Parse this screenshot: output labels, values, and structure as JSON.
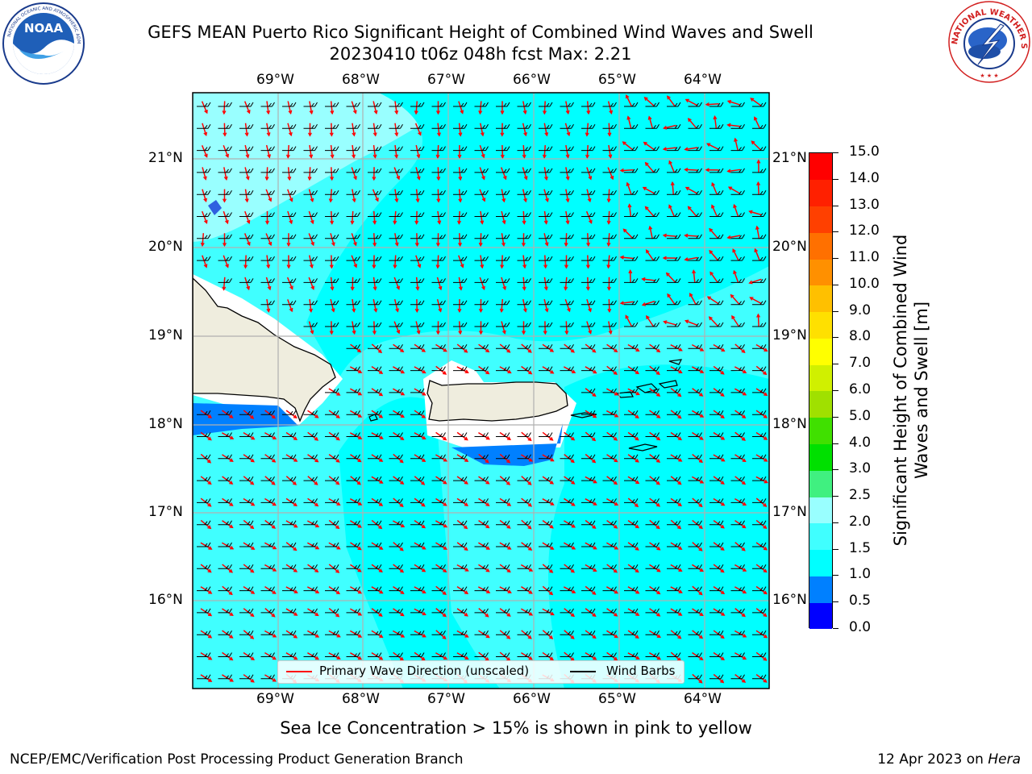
{
  "title_line1": "GEFS MEAN Puerto Rico Significant Height of Combined Wind Waves and Swell",
  "title_line2": "20230410 t06z 048h fcst   Max: 2.21",
  "logos": {
    "left": "NOAA",
    "right": "NATIONAL WEATHER SERVICE"
  },
  "lon_labels": [
    "69°W",
    "68°W",
    "67°W",
    "66°W",
    "65°W",
    "64°W"
  ],
  "lat_labels": [
    "21°N",
    "20°N",
    "19°N",
    "18°N",
    "17°N",
    "16°N"
  ],
  "legend": {
    "wave_label": "Primary Wave Direction (unscaled)",
    "barb_label": "Wind Barbs"
  },
  "colorbar": {
    "label": "Significant Height of Combined Wind Waves and Swell [m]",
    "ticks": [
      "0.0",
      "0.5",
      "1.0",
      "1.5",
      "2.0",
      "2.5",
      "3.0",
      "4.0",
      "5.0",
      "6.0",
      "7.0",
      "8.0",
      "9.0",
      "10.0",
      "11.0",
      "12.0",
      "13.0",
      "14.0",
      "15.0"
    ],
    "colors": [
      "#0000ff",
      "#0080ff",
      "#00ffff",
      "#40ffff",
      "#99ffff",
      "#40f080",
      "#00e000",
      "#40e000",
      "#a0e000",
      "#d0f000",
      "#ffff00",
      "#ffe000",
      "#ffc000",
      "#ff9000",
      "#ff7000",
      "#ff4000",
      "#ff2000",
      "#ff0000"
    ]
  },
  "colors": {
    "land": "#efedde",
    "sea_15_20": "#40ffff",
    "sea_20_25": "#99ffff",
    "sea_10_15": "#00ffff",
    "sea_05_10": "#0080ff",
    "wave_arrow": "#ff0000",
    "barb": "#000000"
  },
  "footnote": "Sea Ice Concentration > 15% is shown in pink to yellow",
  "credit": "NCEP/EMC/Verification Post Processing Product Generation Branch",
  "date_text": "12 Apr 2023 on",
  "host": "Hera"
}
